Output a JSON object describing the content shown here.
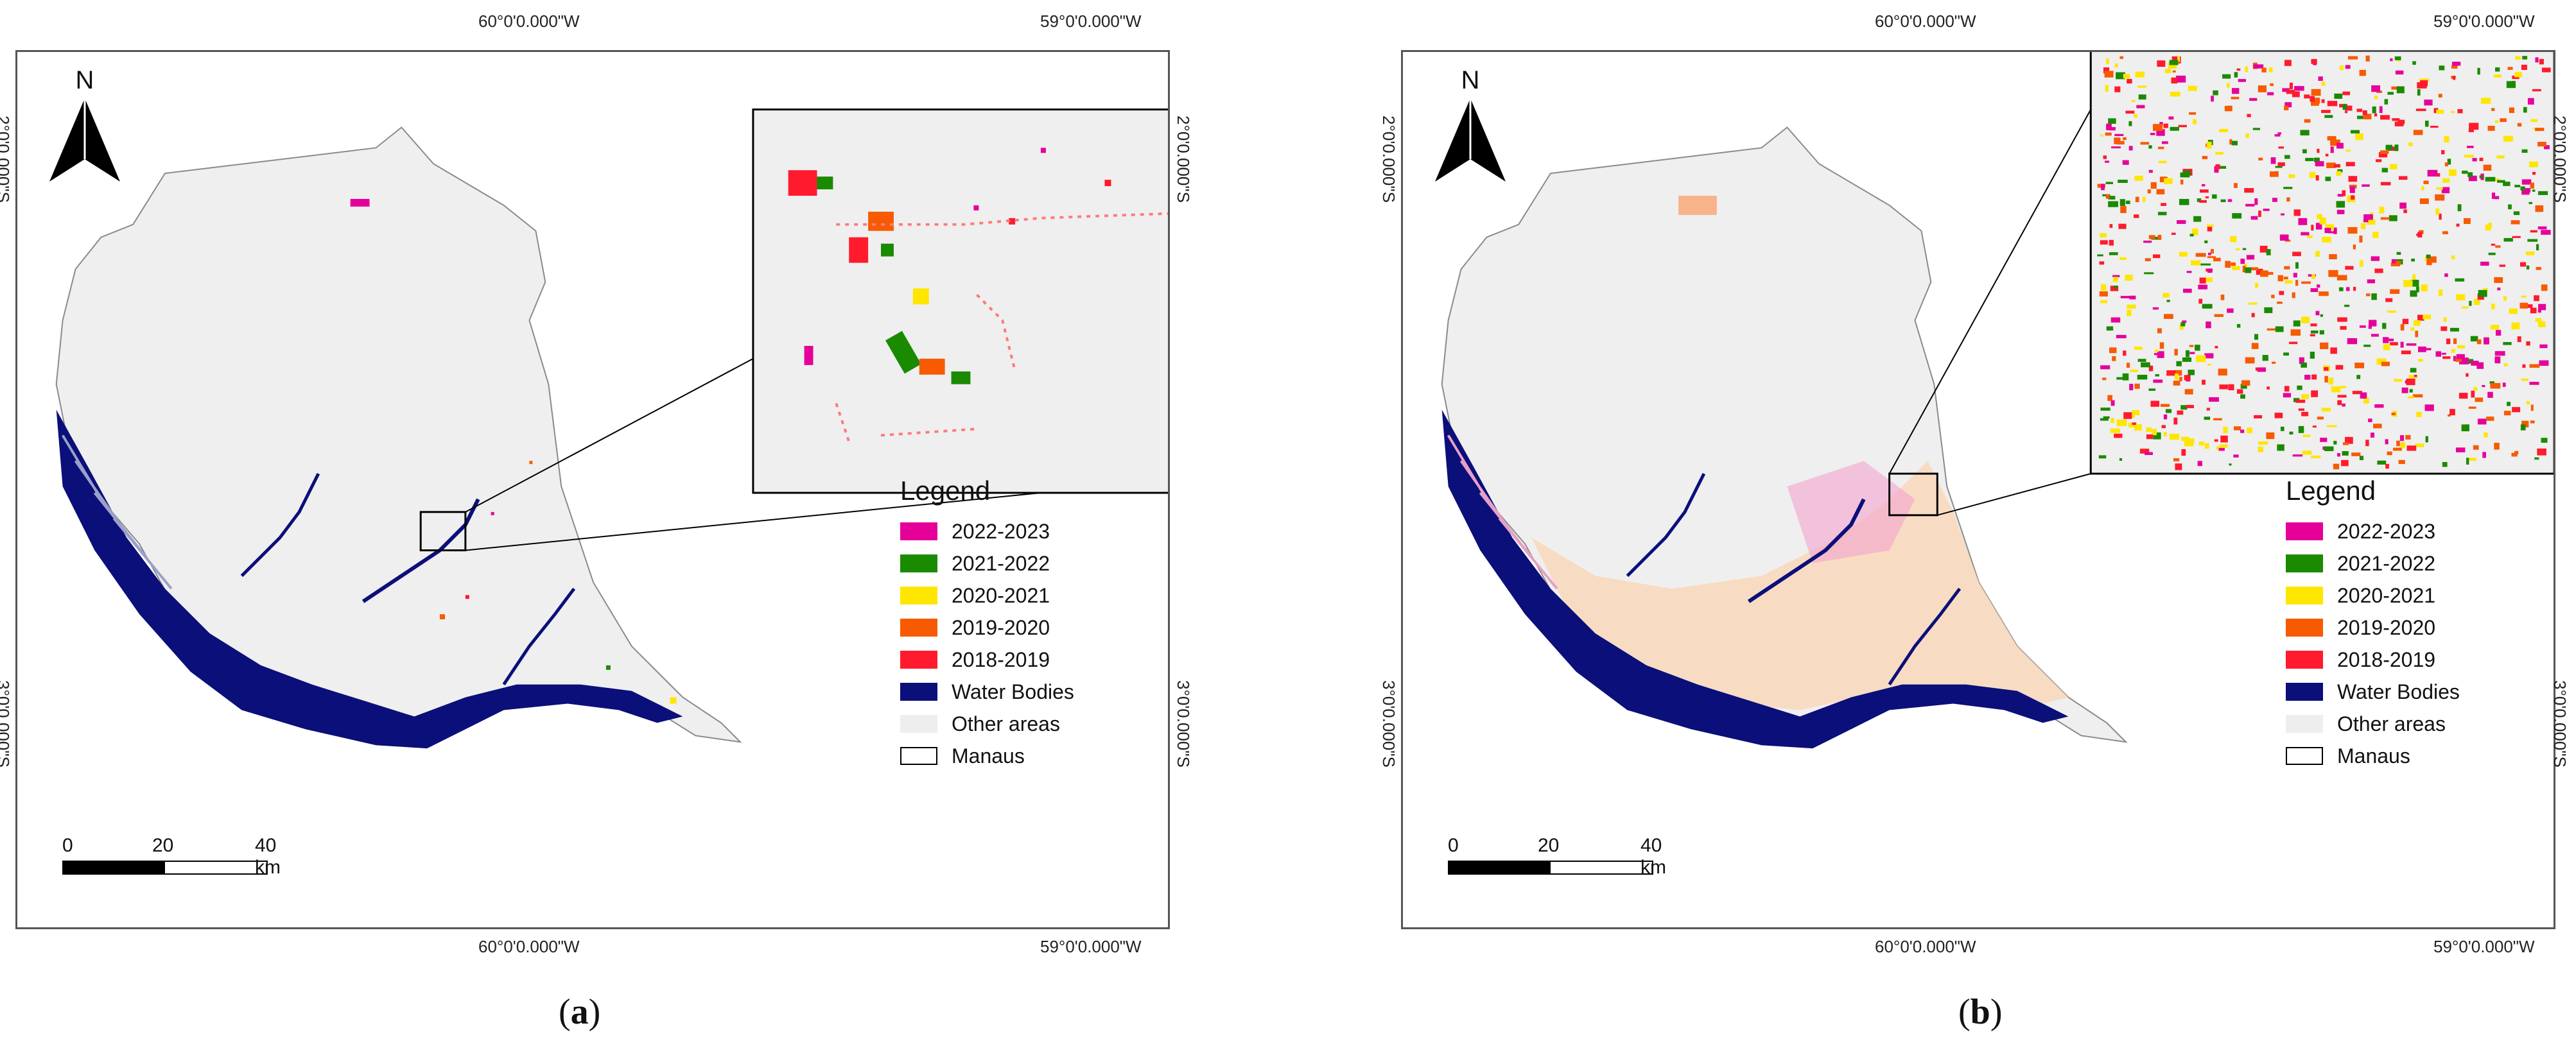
{
  "legend": {
    "title": "Legend",
    "items": [
      {
        "label": "2022-2023",
        "color": "#e6009a"
      },
      {
        "label": "2021-2022",
        "color": "#1a8a00"
      },
      {
        "label": "2020-2021",
        "color": "#ffe600"
      },
      {
        "label": "2019-2020",
        "color": "#f75a00"
      },
      {
        "label": "2018-2019",
        "color": "#ff1a2e"
      },
      {
        "label": "Water Bodies",
        "color": "#0b0f7a"
      },
      {
        "label": "Other areas",
        "color": "#eeeeee"
      },
      {
        "label": "Manaus",
        "color": "#ffffff"
      }
    ]
  },
  "coords": {
    "top_left": "60°0'0.000\"W",
    "top_right": "59°0'0.000\"W",
    "bottom_left": "60°0'0.000\"W",
    "bottom_right": "59°0'0.000\"W",
    "lat_upper": "2°0'0.000\"S",
    "lat_lower": "3°0'0.000\"S"
  },
  "scale": {
    "l0": "0",
    "l1": "20",
    "l2": "40 km"
  },
  "north": "N",
  "panels": [
    {
      "caption_open": "(",
      "caption_letter": "a",
      "caption_close": ")"
    },
    {
      "caption_open": "(",
      "caption_letter": "b",
      "caption_close": ")"
    }
  ]
}
